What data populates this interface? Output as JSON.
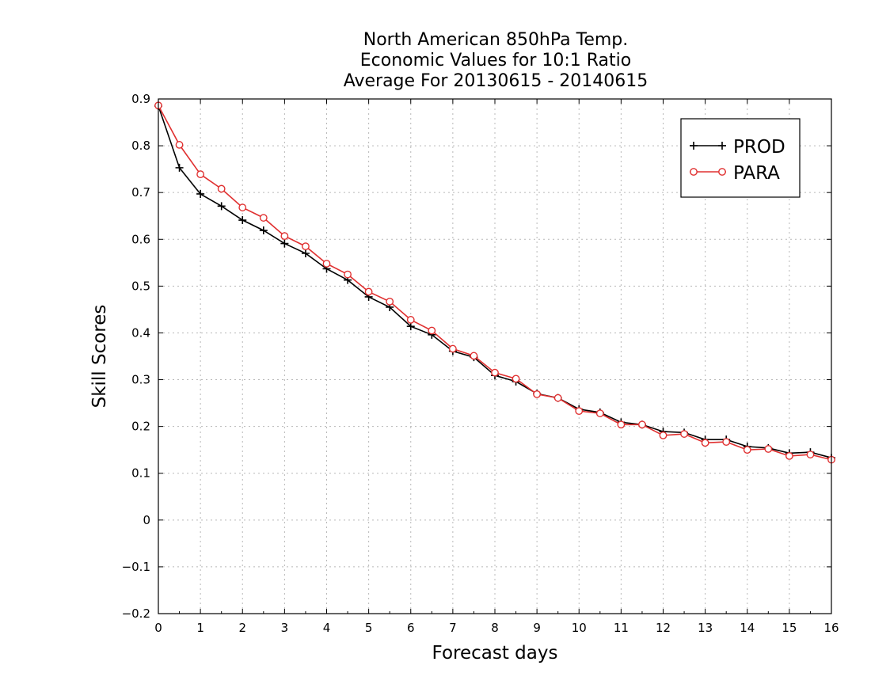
{
  "chart_data": {
    "type": "line",
    "title": [
      "North American 850hPa Temp.",
      "Economic Values for 10:1 Ratio",
      "Average For 20130615 - 20140615"
    ],
    "xlabel": "Forecast days",
    "ylabel": "Skill Scores",
    "xlim": [
      0,
      16
    ],
    "ylim": [
      -0.2,
      0.9
    ],
    "xticks": [
      0,
      1,
      2,
      3,
      4,
      5,
      6,
      7,
      8,
      9,
      10,
      11,
      12,
      13,
      14,
      15,
      16
    ],
    "yticks": [
      0.9,
      0.8,
      0.7,
      0.6,
      0.5,
      0.4,
      0.3,
      0.2,
      0.1,
      0,
      -0.1,
      -0.2
    ],
    "ytick_labels": [
      "0.9",
      "0.8",
      "0.7",
      "0.6",
      "0.5",
      "0.4",
      "0.3",
      "0.2",
      "0.1",
      "0",
      "−0.1",
      "−0.2"
    ],
    "grid": true,
    "legend_position": "top-right",
    "x": [
      0,
      0.5,
      1,
      1.5,
      2,
      2.5,
      3,
      3.5,
      4,
      4.5,
      5,
      5.5,
      6,
      6.5,
      7,
      7.5,
      8,
      8.5,
      9,
      9.5,
      10,
      10.5,
      11,
      11.5,
      12,
      12.5,
      13,
      13.5,
      14,
      14.5,
      15,
      15.5,
      16
    ],
    "series": [
      {
        "name": "PROD",
        "color": "#000000",
        "marker": "plus",
        "values": [
          0.885,
          0.753,
          0.697,
          0.671,
          0.641,
          0.619,
          0.591,
          0.57,
          0.537,
          0.513,
          0.477,
          0.455,
          0.414,
          0.396,
          0.361,
          0.348,
          0.309,
          0.296,
          0.27,
          0.261,
          0.237,
          0.23,
          0.209,
          0.204,
          0.189,
          0.187,
          0.172,
          0.172,
          0.157,
          0.154,
          0.143,
          0.145,
          0.133
        ]
      },
      {
        "name": "PARA",
        "color": "#e03030",
        "marker": "circle",
        "values": [
          0.886,
          0.802,
          0.739,
          0.708,
          0.668,
          0.646,
          0.607,
          0.585,
          0.548,
          0.525,
          0.488,
          0.467,
          0.428,
          0.405,
          0.366,
          0.351,
          0.315,
          0.302,
          0.269,
          0.261,
          0.233,
          0.228,
          0.204,
          0.204,
          0.181,
          0.184,
          0.165,
          0.167,
          0.15,
          0.152,
          0.137,
          0.14,
          0.129
        ]
      }
    ]
  }
}
